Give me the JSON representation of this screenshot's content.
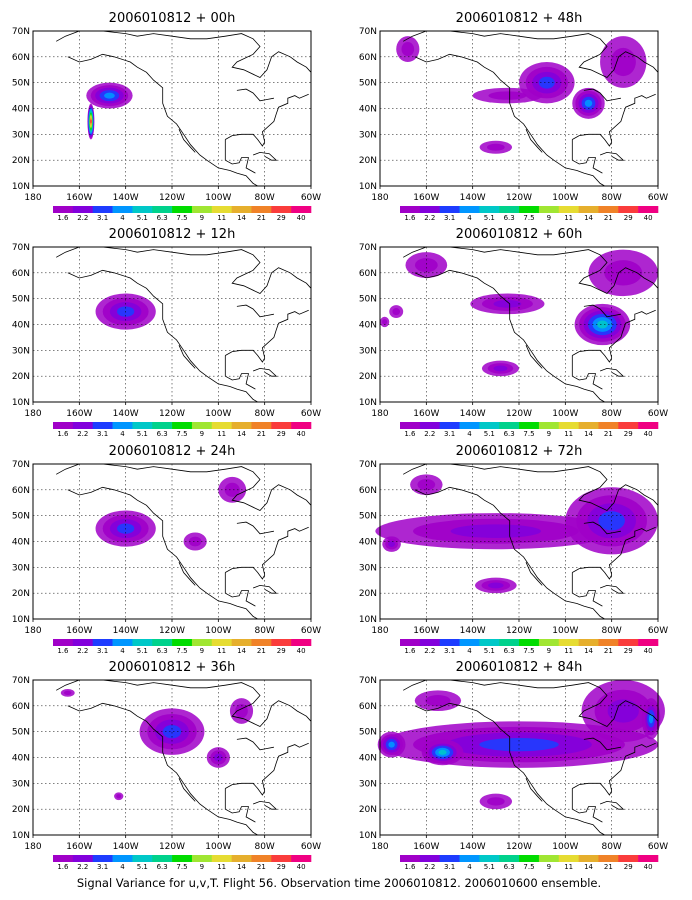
{
  "figure": {
    "caption": "Signal Variance for u,v,T. Flight 56. Observation time 2006010812. 2006010600 ensemble."
  },
  "chart_data": {
    "type": "heatmap",
    "map_region": "North Pacific / North America",
    "grid": true,
    "longitude_ticks": [
      "180",
      "160W",
      "140W",
      "120W",
      "100W",
      "80W",
      "60W"
    ],
    "latitude_ticks": [
      "10N",
      "20N",
      "30N",
      "40N",
      "50N",
      "60N",
      "70N"
    ],
    "lon_range": [
      -180,
      -60
    ],
    "lat_range": [
      10,
      70
    ],
    "colorbar": {
      "labels": [
        "1.6",
        "2.2",
        "3.1",
        "4",
        "5.1",
        "6.3",
        "7.5",
        "9",
        "11",
        "14",
        "21",
        "29",
        "40"
      ],
      "colors": [
        "#a000c8",
        "#8200dc",
        "#1e3cff",
        "#0096ff",
        "#00c8c8",
        "#00d28c",
        "#00dc00",
        "#a0e632",
        "#e6dc32",
        "#e6af2d",
        "#f08228",
        "#fa3c3c",
        "#f00082"
      ]
    },
    "panels": [
      {
        "title": "2006010812 + 00h",
        "regions": [
          {
            "lon": -147,
            "lat": 45,
            "rx": 10,
            "ry": 5,
            "level": 4
          },
          {
            "lon": -155,
            "lat": 35,
            "rx": 1.5,
            "ry": 7,
            "level": 12
          }
        ]
      },
      {
        "title": "2006010812 + 48h",
        "regions": [
          {
            "lon": -168,
            "lat": 63,
            "rx": 5,
            "ry": 5,
            "level": 1
          },
          {
            "lon": -108,
            "lat": 50,
            "rx": 12,
            "ry": 8,
            "level": 3
          },
          {
            "lon": -90,
            "lat": 42,
            "rx": 7,
            "ry": 6,
            "level": 4
          },
          {
            "lon": -125,
            "lat": 45,
            "rx": 15,
            "ry": 3,
            "level": 1
          },
          {
            "lon": -75,
            "lat": 58,
            "rx": 10,
            "ry": 10,
            "level": 1
          },
          {
            "lon": -130,
            "lat": 25,
            "rx": 7,
            "ry": 2.5,
            "level": 1
          }
        ]
      },
      {
        "title": "2006010812 + 12h",
        "regions": [
          {
            "lon": -140,
            "lat": 45,
            "rx": 13,
            "ry": 7,
            "level": 3
          }
        ]
      },
      {
        "title": "2006010812 + 60h",
        "regions": [
          {
            "lon": -160,
            "lat": 63,
            "rx": 9,
            "ry": 5,
            "level": 1
          },
          {
            "lon": -125,
            "lat": 48,
            "rx": 16,
            "ry": 4,
            "level": 2
          },
          {
            "lon": -84,
            "lat": 40,
            "rx": 12,
            "ry": 8,
            "level": 5
          },
          {
            "lon": -128,
            "lat": 23,
            "rx": 8,
            "ry": 3,
            "level": 2
          },
          {
            "lon": -173,
            "lat": 45,
            "rx": 3,
            "ry": 2.5,
            "level": 1
          },
          {
            "lon": -75,
            "lat": 60,
            "rx": 15,
            "ry": 9,
            "level": 1
          },
          {
            "lon": -178,
            "lat": 41,
            "rx": 2,
            "ry": 2,
            "level": 1
          }
        ]
      },
      {
        "title": "2006010812 + 24h",
        "regions": [
          {
            "lon": -140,
            "lat": 45,
            "rx": 13,
            "ry": 7,
            "level": 3
          },
          {
            "lon": -110,
            "lat": 40,
            "rx": 5,
            "ry": 3.5,
            "level": 1
          },
          {
            "lon": -94,
            "lat": 60,
            "rx": 6,
            "ry": 5,
            "level": 1
          }
        ]
      },
      {
        "title": "2006010812 + 72h",
        "regions": [
          {
            "lon": -130,
            "lat": 44,
            "rx": 52,
            "ry": 7,
            "level": 2
          },
          {
            "lon": -160,
            "lat": 62,
            "rx": 7,
            "ry": 4,
            "level": 1
          },
          {
            "lon": -80,
            "lat": 48,
            "rx": 20,
            "ry": 13,
            "level": 3
          },
          {
            "lon": -130,
            "lat": 23,
            "rx": 9,
            "ry": 3,
            "level": 2
          },
          {
            "lon": -175,
            "lat": 39,
            "rx": 4,
            "ry": 3,
            "level": 2
          }
        ]
      },
      {
        "title": "2006010812 + 36h",
        "regions": [
          {
            "lon": -120,
            "lat": 50,
            "rx": 14,
            "ry": 9,
            "level": 3
          },
          {
            "lon": -100,
            "lat": 40,
            "rx": 5,
            "ry": 4,
            "level": 2
          },
          {
            "lon": -90,
            "lat": 58,
            "rx": 5,
            "ry": 5,
            "level": 1
          },
          {
            "lon": -165,
            "lat": 65,
            "rx": 3,
            "ry": 1.5,
            "level": 1
          },
          {
            "lon": -143,
            "lat": 25,
            "rx": 2,
            "ry": 1.5,
            "level": 1
          }
        ]
      },
      {
        "title": "2006010812 + 84h",
        "regions": [
          {
            "lon": -120,
            "lat": 45,
            "rx": 60,
            "ry": 9,
            "level": 3
          },
          {
            "lon": -153,
            "lat": 42,
            "rx": 9,
            "ry": 5,
            "level": 5
          },
          {
            "lon": -175,
            "lat": 45,
            "rx": 6,
            "ry": 5,
            "level": 4
          },
          {
            "lon": -155,
            "lat": 62,
            "rx": 10,
            "ry": 4,
            "level": 1
          },
          {
            "lon": -130,
            "lat": 23,
            "rx": 7,
            "ry": 3,
            "level": 1
          },
          {
            "lon": -75,
            "lat": 58,
            "rx": 18,
            "ry": 12,
            "level": 2
          },
          {
            "lon": -63,
            "lat": 55,
            "rx": 4,
            "ry": 8,
            "level": 4
          }
        ]
      }
    ]
  }
}
